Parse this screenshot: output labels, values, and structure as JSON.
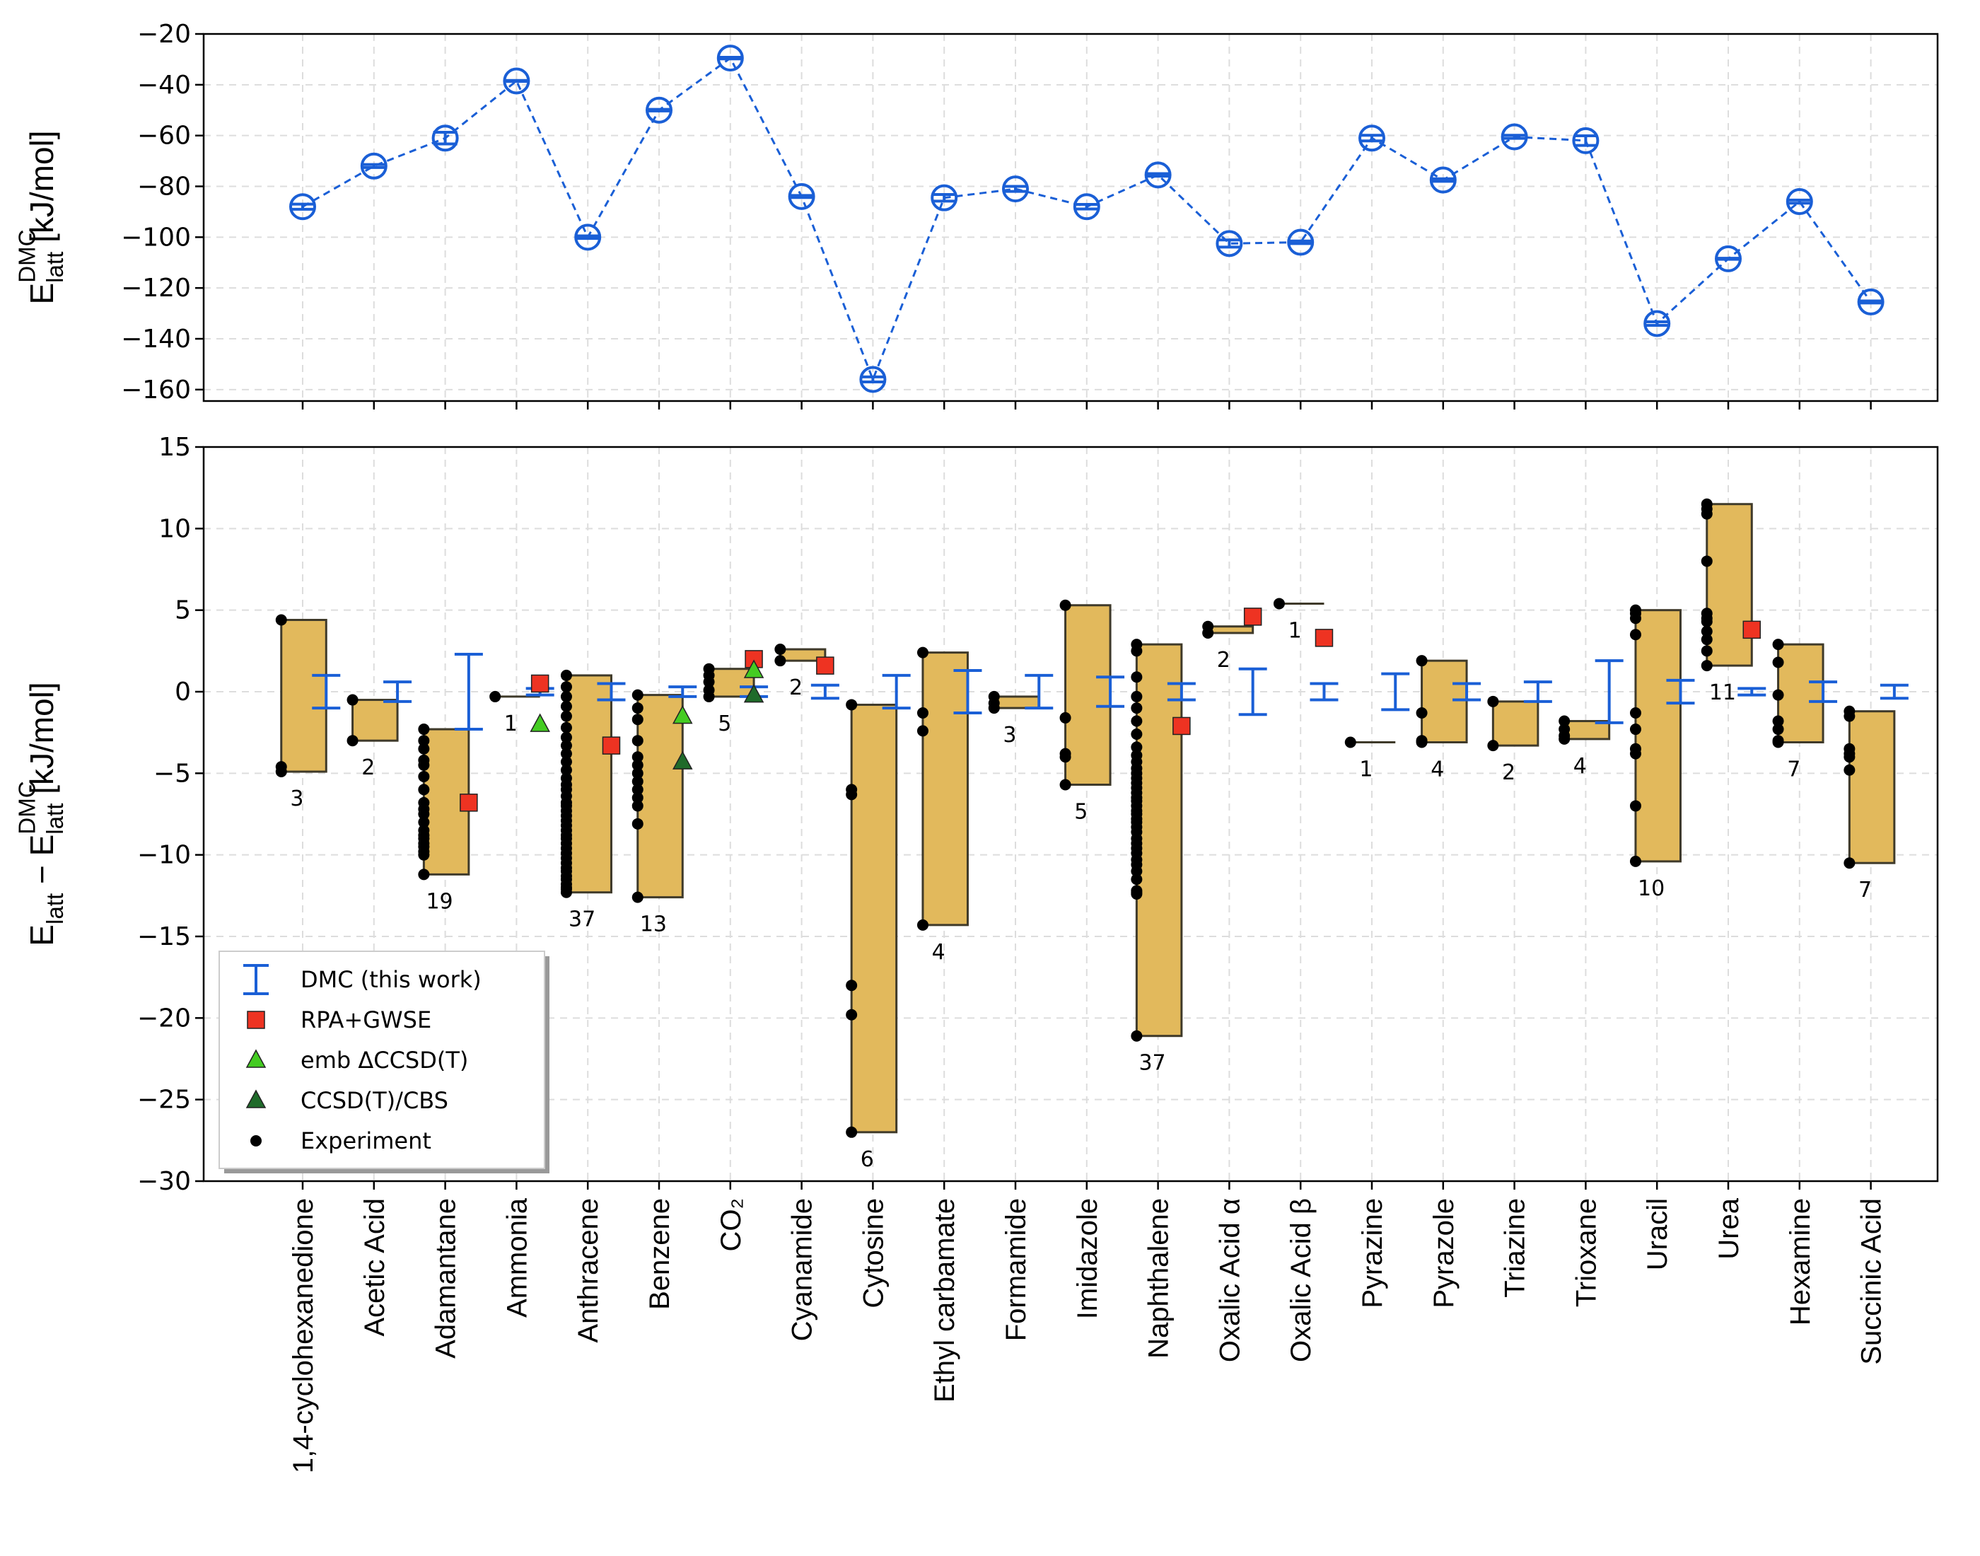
{
  "chart_data": [
    {
      "type": "line",
      "ylabel": [
        {
          "text": "E"
        },
        {
          "text": "DMC",
          "script": "sup"
        },
        {
          "text": "latt",
          "script": "sub"
        },
        {
          "text": " [kJ/mol]"
        }
      ],
      "ylim": [
        -164.5,
        -20
      ],
      "yticks": [
        {
          "value": -20,
          "label": "−20"
        },
        {
          "value": -40,
          "label": "−40"
        },
        {
          "value": -60,
          "label": "−60"
        },
        {
          "value": -80,
          "label": "−80"
        },
        {
          "value": -100,
          "label": "−100"
        },
        {
          "value": -120,
          "label": "−120"
        },
        {
          "value": -140,
          "label": "−140"
        },
        {
          "value": -160,
          "label": "−160"
        }
      ],
      "grid": true,
      "series": [
        {
          "name": "DMC",
          "color": "#1a5fd6",
          "values": [
            -88,
            -72,
            -61,
            -38.5,
            -100,
            -50,
            -29.5,
            -84,
            -156,
            -84.5,
            -81,
            -88,
            -75.5,
            -102.5,
            -102,
            -61,
            -77.5,
            -60.5,
            -62,
            -134,
            -108.5,
            -86,
            -125.5
          ],
          "errors": [
            1.0,
            0.6,
            2.3,
            0.2,
            0.5,
            0.3,
            0.3,
            0.4,
            1.0,
            1.3,
            1.0,
            0.9,
            0.5,
            1.4,
            0.5,
            1.1,
            0.5,
            0.6,
            1.9,
            0.7,
            0.2,
            0.6,
            0.4
          ]
        }
      ]
    },
    {
      "type": "range",
      "ylabel": [
        {
          "text": "E"
        },
        {
          "text": "latt",
          "script": "sub"
        },
        {
          "text": " − E"
        },
        {
          "text": "DMC",
          "script": "sup"
        },
        {
          "text": "latt",
          "script": "sub"
        },
        {
          "text": " [kJ/mol]"
        }
      ],
      "categories": [
        "1,4-cyclohexanedione",
        "Acetic Acid",
        "Adamantane",
        "Ammonia",
        "Anthracene",
        "Benzene",
        "CO₂",
        "Cyanamide",
        "Cytosine",
        "Ethyl carbamate",
        "Formamide",
        "Imidazole",
        "Naphthalene",
        "Oxalic Acid α",
        "Oxalic Acid β",
        "Pyrazine",
        "Pyrazole",
        "Triazine",
        "Trioxane",
        "Uracil",
        "Urea",
        "Hexamine",
        "Succinic Acid"
      ],
      "ylim": [
        -30,
        15
      ],
      "yticks": [
        {
          "value": -30,
          "label": "−30"
        },
        {
          "value": -25,
          "label": "−25"
        },
        {
          "value": -20,
          "label": "−20"
        },
        {
          "value": -15,
          "label": "−15"
        },
        {
          "value": -10,
          "label": "−10"
        },
        {
          "value": -5,
          "label": "−5"
        },
        0,
        5,
        10,
        15
      ],
      "grid": true,
      "legend": "lower left",
      "series": [
        {
          "name": "DMC (this work)",
          "color": "#1a5fd6",
          "marker": "errorbar",
          "values": [
            0,
            0,
            0,
            0,
            0,
            0,
            0,
            0,
            0,
            0,
            0,
            0,
            0,
            0,
            0,
            0,
            0,
            0,
            0,
            0,
            0,
            0,
            0
          ],
          "errors": [
            1.0,
            0.6,
            2.3,
            0.2,
            0.5,
            0.3,
            0.3,
            0.4,
            1.0,
            1.3,
            1.0,
            0.9,
            0.5,
            1.4,
            0.5,
            1.1,
            0.5,
            0.6,
            1.9,
            0.7,
            0.2,
            0.6,
            0.4
          ]
        },
        {
          "name": "RPA+GWSE",
          "color": "#ee3322",
          "marker": "square",
          "values": [
            null,
            null,
            -6.8,
            0.5,
            -3.3,
            null,
            2.0,
            1.6,
            null,
            null,
            null,
            null,
            -2.1,
            4.6,
            3.3,
            null,
            null,
            null,
            null,
            null,
            3.8,
            null,
            null
          ]
        },
        {
          "name": "emb ΔCCSD(T)",
          "color": "#44cc22",
          "marker": "triangle",
          "values": [
            null,
            null,
            null,
            -2.0,
            null,
            -1.5,
            1.3,
            null,
            null,
            null,
            null,
            null,
            null,
            null,
            null,
            null,
            null,
            null,
            null,
            null,
            null,
            null,
            null
          ]
        },
        {
          "name": "CCSD(T)/CBS",
          "color": "#1f6b2a",
          "marker": "triangle",
          "values": [
            null,
            null,
            null,
            null,
            null,
            -4.3,
            -0.2,
            null,
            null,
            null,
            null,
            null,
            null,
            null,
            null,
            null,
            null,
            null,
            null,
            null,
            null,
            null,
            null
          ]
        }
      ],
      "experiment": {
        "name": "Experiment",
        "color": "#000000",
        "box_color": "#e2b95c",
        "values": [
          [
            4.4,
            -4.6,
            -4.9
          ],
          [
            -0.5,
            -3.0
          ],
          [
            -2.3,
            -3.0,
            -3.5,
            -4.2,
            -4.5,
            -5.2,
            -6.0,
            -6.8,
            -7.2,
            -7.5,
            -8.0,
            -8.5,
            -8.8,
            -9.0,
            -9.3,
            -9.5,
            -9.8,
            -10.0,
            -11.2
          ],
          [
            -0.3
          ],
          [
            1.0,
            0.3,
            -0.3,
            -0.9,
            -1.5,
            -2.2,
            -2.8,
            -3.3,
            -3.8,
            -4.3,
            -4.8,
            -5.3,
            -5.7,
            -6.0,
            -6.4,
            -6.8,
            -7.0,
            -7.3,
            -7.6,
            -7.9,
            -8.2,
            -8.5,
            -8.8,
            -9.0,
            -9.3,
            -9.6,
            -9.9,
            -10.2,
            -10.5,
            -10.8,
            -11.0,
            -11.3,
            -11.5,
            -11.8,
            -12.0,
            -12.1,
            -12.3
          ],
          [
            -0.2,
            -1.0,
            -1.7,
            -3.0,
            -4.0,
            -4.5,
            -5.0,
            -5.5,
            -6.0,
            -6.5,
            -7.0,
            -8.1,
            -12.6
          ],
          [
            1.4,
            1.0,
            0.6,
            0.1,
            -0.3
          ],
          [
            2.6,
            1.9
          ],
          [
            -0.8,
            -6.0,
            -6.3,
            -18.0,
            -19.8,
            -27.0
          ],
          [
            2.4,
            -1.3,
            -2.4,
            -14.3
          ],
          [
            -0.3,
            -0.7,
            -1.0
          ],
          [
            5.3,
            -1.6,
            -3.8,
            -4.0,
            -5.7
          ],
          [
            2.9,
            2.5,
            0.9,
            -0.3,
            -1.0,
            -1.8,
            -2.6,
            -3.4,
            -3.9,
            -4.3,
            -4.7,
            -5.0,
            -5.3,
            -5.6,
            -5.9,
            -6.2,
            -6.5,
            -6.7,
            -7.0,
            -7.3,
            -7.5,
            -7.8,
            -8.0,
            -8.3,
            -8.6,
            -9.0,
            -9.3,
            -9.6,
            -9.9,
            -10.3,
            -10.6,
            -11.0,
            -11.5,
            -12.2,
            -12.3,
            -12.4,
            -21.1
          ],
          [
            4.0,
            3.6
          ],
          [
            5.4
          ],
          [
            -3.1
          ],
          [
            1.9,
            -1.3,
            -3.0,
            -3.1
          ],
          [
            -0.6,
            -3.3
          ],
          [
            -1.8,
            -2.3,
            -2.7,
            -2.9
          ],
          [
            5.0,
            4.8,
            4.5,
            3.5,
            -1.3,
            -2.3,
            -3.5,
            -3.8,
            -7.0,
            -10.4
          ],
          [
            11.5,
            11.2,
            10.9,
            8.0,
            4.8,
            4.5,
            4.3,
            3.7,
            3.2,
            2.5,
            1.6
          ],
          [
            2.9,
            1.8,
            -0.2,
            -1.8,
            -2.3,
            -3.0,
            -3.1
          ],
          [
            -1.2,
            -1.5,
            -3.5,
            -3.8,
            -4.0,
            -4.8,
            -10.5
          ]
        ],
        "counts": [
          3,
          2,
          19,
          1,
          37,
          13,
          5,
          2,
          6,
          4,
          3,
          5,
          37,
          2,
          1,
          1,
          4,
          2,
          4,
          10,
          11,
          7,
          7
        ]
      }
    }
  ]
}
